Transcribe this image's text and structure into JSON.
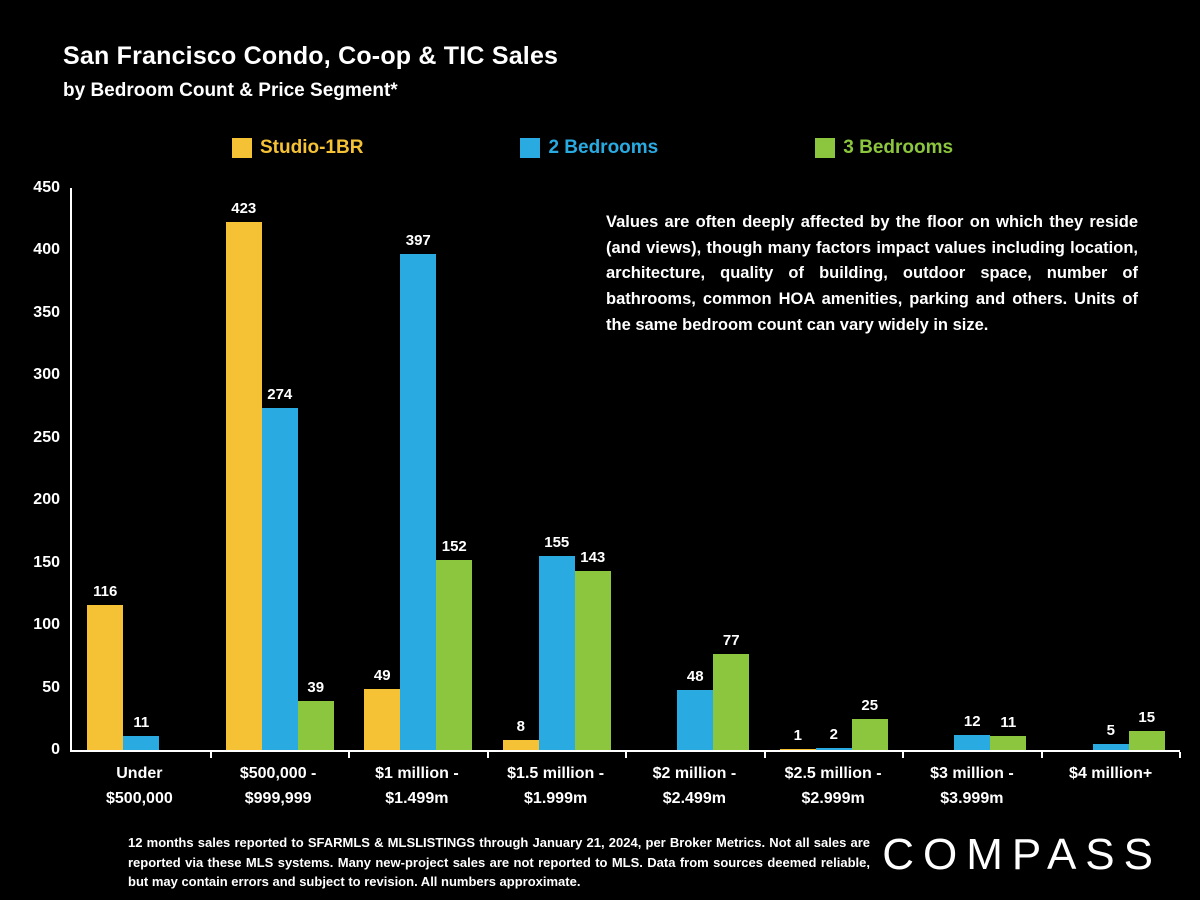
{
  "title": "San Francisco Condo, Co-op & TIC Sales",
  "subtitle": "by Bedroom Count & Price Segment*",
  "legend": [
    {
      "label": "Studio-1BR",
      "color": "#F5C236"
    },
    {
      "label": "2 Bedrooms",
      "color": "#29ABE2"
    },
    {
      "label": "3 Bedrooms",
      "color": "#8CC63E"
    }
  ],
  "annotation": "Values are often deeply affected by the floor on which they reside (and views), though many factors impact values including location, architecture, quality of building, outdoor space, number of bathrooms, common HOA amenities, parking and others. Units of the same bedroom count can vary widely in size.",
  "footnote": "12 months sales reported to SFARMLS & MLSLISTINGS through January 21, 2024, per Broker Metrics. Not all sales are reported via these MLS systems. Many new-project sales are not reported to MLS. Data from sources deemed reliable, but may contain errors and subject to revision. All numbers approximate.",
  "logo": "COMPASS",
  "chart_data": {
    "type": "bar",
    "title": "San Francisco Condo, Co-op & TIC Sales by Bedroom Count & Price Segment",
    "categories": [
      "Under\n$500,000",
      "$500,000 -\n$999,999",
      "$1 million -\n$1.499m",
      "$1.5 million -\n$1.999m",
      "$2 million -\n$2.499m",
      "$2.5 million -\n$2.999m",
      "$3 million -\n$3.999m",
      "$4 million+"
    ],
    "series": [
      {
        "name": "Studio-1BR",
        "color": "#F5C236",
        "values": [
          116,
          423,
          49,
          8,
          null,
          1,
          null,
          null
        ]
      },
      {
        "name": "2 Bedrooms",
        "color": "#29ABE2",
        "values": [
          11,
          274,
          397,
          155,
          48,
          2,
          12,
          5
        ]
      },
      {
        "name": "3 Bedrooms",
        "color": "#8CC63E",
        "values": [
          null,
          39,
          152,
          143,
          77,
          25,
          11,
          15
        ]
      }
    ],
    "xlabel": "",
    "ylabel": "",
    "ylim": [
      0,
      450
    ],
    "yticks": [
      0,
      50,
      100,
      150,
      200,
      250,
      300,
      350,
      400,
      450
    ],
    "grid": false,
    "legend_position": "top",
    "background": "#000000"
  }
}
